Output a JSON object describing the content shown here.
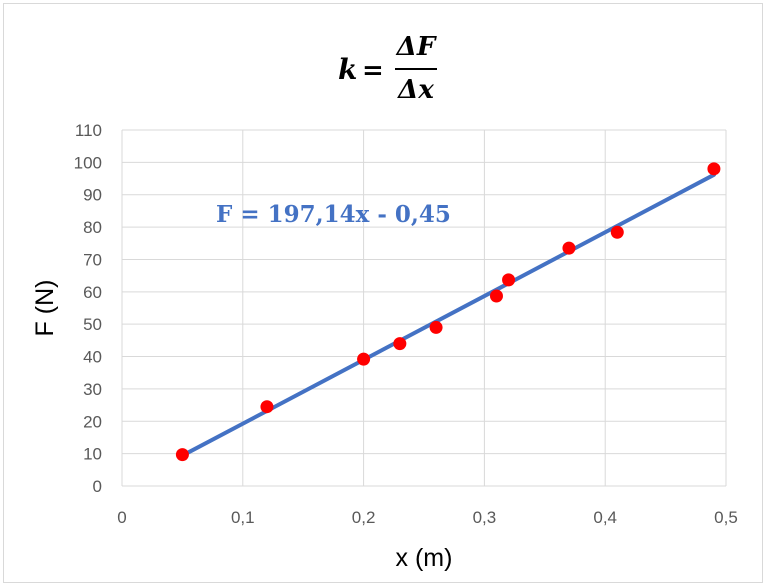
{
  "chart_data": {
    "type": "scatter",
    "title": {
      "lhs": "k",
      "equals": "=",
      "numerator": "ΔF",
      "denominator": "Δx"
    },
    "xlabel": "x (m)",
    "ylabel": "F (N)",
    "xlim": [
      0,
      0.5
    ],
    "ylim": [
      0,
      110
    ],
    "x_ticks": [
      "0",
      "0,1",
      "0,2",
      "0,3",
      "0,4",
      "0,5"
    ],
    "y_ticks": [
      "0",
      "10",
      "20",
      "30",
      "40",
      "50",
      "60",
      "70",
      "80",
      "90",
      "100",
      "110"
    ],
    "grid": true,
    "series": [
      {
        "points": [
          {
            "x": 0.05,
            "y": 9.7
          },
          {
            "x": 0.12,
            "y": 24.5
          },
          {
            "x": 0.2,
            "y": 39.2
          },
          {
            "x": 0.23,
            "y": 44.0
          },
          {
            "x": 0.26,
            "y": 49.0
          },
          {
            "x": 0.31,
            "y": 58.7
          },
          {
            "x": 0.32,
            "y": 63.7
          },
          {
            "x": 0.37,
            "y": 73.5
          },
          {
            "x": 0.41,
            "y": 78.4
          },
          {
            "x": 0.49,
            "y": 98.0
          }
        ],
        "color": "#ff0000"
      }
    ],
    "trendline": {
      "equation": "F = 197,14x - 0,45",
      "slope": 197.14,
      "intercept": -0.45,
      "x_range": [
        0.05,
        0.49
      ],
      "color": "#4472c4"
    }
  }
}
